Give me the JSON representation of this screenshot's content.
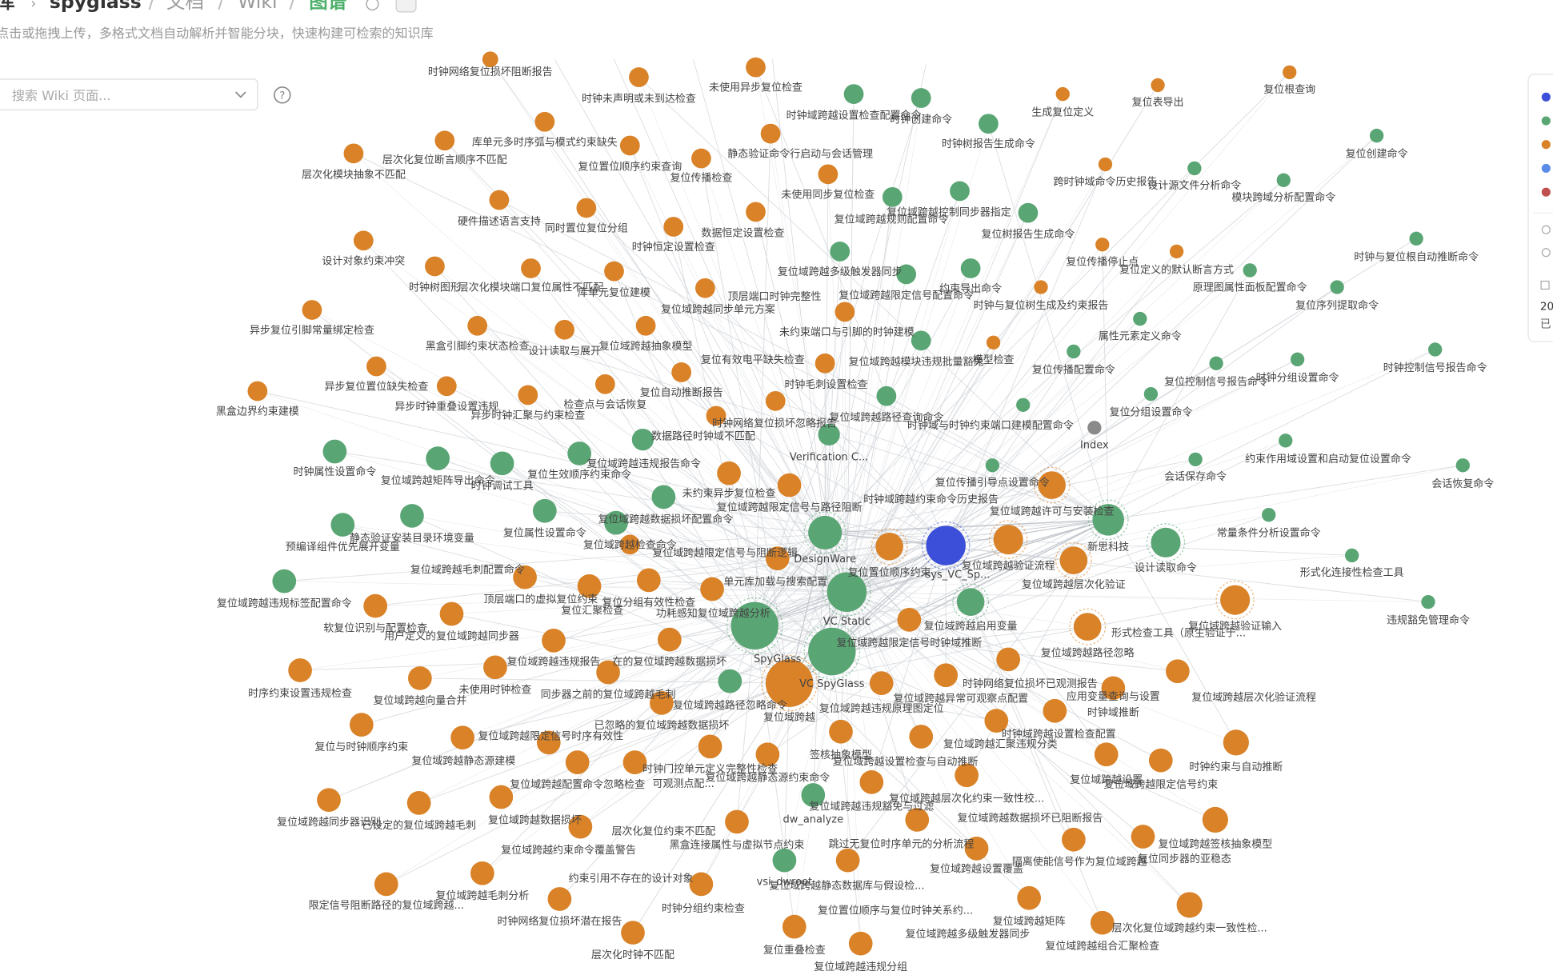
{
  "header": {
    "breadcrumb": [
      "库",
      "spyglass",
      "文档",
      "Wiki",
      "图谱"
    ],
    "subtitle": "点击或拖拽上传，多格式文档自动解析并智能分块，快速构建可检索的知识库"
  },
  "search": {
    "placeholder": "搜索 Wiki 页面..."
  },
  "side_panel": {
    "legend_colors": [
      "#3b4fd8",
      "#5aa574",
      "#d98228",
      "#5b8de8",
      "#c0504d"
    ],
    "count": "20",
    "text": "已"
  },
  "graph": {
    "nodes": [
      {
        "label": "时钟网络复位损坏阻断报告",
        "color": "#d98228"
      },
      {
        "label": "时钟未声明或未到达检查",
        "color": "#d98228"
      },
      {
        "label": "未使用异步复位检查",
        "color": "#d98228"
      },
      {
        "label": "时钟域跨越设置检查配置命令",
        "color": "#5aa574"
      },
      {
        "label": "时钟创建命令",
        "color": "#5aa574"
      },
      {
        "label": "生成复位定义",
        "color": "#d98228"
      },
      {
        "label": "复位表导出",
        "color": "#d98228"
      },
      {
        "label": "复位根查询",
        "color": "#d98228"
      },
      {
        "label": "时钟树报告生成命令",
        "color": "#5aa574"
      },
      {
        "label": "复位创建命令",
        "color": "#5aa574"
      },
      {
        "label": "库单元多时序弧与模式约束缺失",
        "color": "#d98228"
      },
      {
        "label": "静态验证命令行启动与会话管理",
        "color": "#d98228"
      },
      {
        "label": "复位置位顺序约束查询",
        "color": "#d98228"
      },
      {
        "label": "复位传播检查",
        "color": "#d98228"
      },
      {
        "label": "层次化复位断言顺序不匹配",
        "color": "#d98228"
      },
      {
        "label": "层次化模块抽象不匹配",
        "color": "#d98228"
      },
      {
        "label": "跨时钟域命令历史报告",
        "color": "#d98228"
      },
      {
        "label": "设计源文件分析命令",
        "color": "#5aa574"
      },
      {
        "label": "模块跨域分析配置命令",
        "color": "#5aa574"
      },
      {
        "label": "未使用同步复位检查",
        "color": "#5aa574"
      },
      {
        "label": "复位域跨越控制同步器指定",
        "color": "#5aa574"
      },
      {
        "label": "复位域跨越规则配置命令",
        "color": "#d98228"
      },
      {
        "label": "硬件描述语言支持",
        "color": "#d98228"
      },
      {
        "label": "同时置位复位分组",
        "color": "#d98228"
      },
      {
        "label": "数据恒定设置检查",
        "color": "#d98228"
      },
      {
        "label": "时钟恒定设置检查",
        "color": "#d98228"
      },
      {
        "label": "复位树报告生成命令",
        "color": "#5aa574"
      },
      {
        "label": "设计对象约束冲突",
        "color": "#d98228"
      },
      {
        "label": "复位域跨越多级触发器同步",
        "color": "#5aa574"
      },
      {
        "label": "复位传播停止点",
        "color": "#d98228"
      },
      {
        "label": "复位定义的默认断言方式",
        "color": "#d98228"
      },
      {
        "label": "时钟与复位根自动推断命令",
        "color": "#5aa574"
      },
      {
        "label": "时钟树图形",
        "color": "#d98228"
      },
      {
        "label": "层次化模块端口复位属性不匹配",
        "color": "#d98228"
      },
      {
        "label": "库单元复位建模",
        "color": "#d98228"
      },
      {
        "label": "约束导出命令",
        "color": "#5aa574"
      },
      {
        "label": "原理图属性面板配置命令",
        "color": "#5aa574"
      },
      {
        "label": "顶层端口时钟完整性",
        "color": "#d98228"
      },
      {
        "label": "复位域跨越限定信号配置命令",
        "color": "#5aa574"
      },
      {
        "label": "时钟与复位树生成及约束报告",
        "color": "#d98228"
      },
      {
        "label": "复位序列提取命令",
        "color": "#5aa574"
      },
      {
        "label": "异步复位引脚常量绑定检查",
        "color": "#d98228"
      },
      {
        "label": "复位域跨越同步单元方案",
        "color": "#d98228"
      },
      {
        "label": "黑盒引脚约束状态检查",
        "color": "#d98228"
      },
      {
        "label": "设计读取与展开",
        "color": "#d98228"
      },
      {
        "label": "复位域跨越抽象模型",
        "color": "#d98228"
      },
      {
        "label": "未约束端口与引脚的时钟建模",
        "color": "#5aa574"
      },
      {
        "label": "属性元素定义命令",
        "color": "#5aa574"
      },
      {
        "label": "模型检查",
        "color": "#d98228"
      },
      {
        "label": "复位有效电平缺失检查",
        "color": "#d98228"
      },
      {
        "label": "复位域跨越模块违规批量豁免",
        "color": "#d98228"
      },
      {
        "label": "复位传播配置命令",
        "color": "#5aa574"
      },
      {
        "label": "复位控制信号报告命令",
        "color": "#5aa574"
      },
      {
        "label": "时钟分组设置命令",
        "color": "#5aa574"
      },
      {
        "label": "时钟控制信号报告命令",
        "color": "#5aa574"
      },
      {
        "label": "异步复位置位缺失检查",
        "color": "#d98228"
      },
      {
        "label": "复位自动推断报告",
        "color": "#d98228"
      },
      {
        "label": "时钟毛刺设置检查",
        "color": "#d98228"
      },
      {
        "label": "黑盒边界约束建模",
        "color": "#d98228"
      },
      {
        "label": "异步时钟重叠设置违规",
        "color": "#d98228"
      },
      {
        "label": "检查点与会话恢复",
        "color": "#d98228"
      },
      {
        "label": "异步时钟汇聚与约束检查",
        "color": "#d98228"
      },
      {
        "label": "复位分组设置命令",
        "color": "#5aa574"
      },
      {
        "label": "时钟网络复位损坏忽略报告",
        "color": "#d98228"
      },
      {
        "label": "复位域跨越路径查询命令",
        "color": "#5aa574"
      },
      {
        "label": "时钟域与时钟约束端口建模配置命令",
        "color": "#5aa574"
      },
      {
        "label": "数据路径时钟域不匹配",
        "color": "#5aa574"
      },
      {
        "label": "Verification C...",
        "color": "#5aa574"
      },
      {
        "label": "Index",
        "color": "#8a8a8a"
      },
      {
        "label": "约束作用域设置和启动复位设置命令",
        "color": "#5aa574"
      },
      {
        "label": "会话保存命令",
        "color": "#5aa574"
      },
      {
        "label": "会话恢复命令",
        "color": "#5aa574"
      },
      {
        "label": "时钟属性设置命令",
        "color": "#5aa574"
      },
      {
        "label": "复位域跨越矩阵导出命令",
        "color": "#5aa574"
      },
      {
        "label": "时钟调试工具",
        "color": "#5aa574"
      },
      {
        "label": "复位生效顺序约束命令",
        "color": "#5aa574"
      },
      {
        "label": "复位域跨越违规报告命令",
        "color": "#d98228"
      },
      {
        "label": "未约束异步复位检查",
        "color": "#d98228"
      },
      {
        "label": "复位传播引导点设置命令",
        "color": "#d98228"
      },
      {
        "label": "时钟域跨越约束命令历史报告",
        "color": "#5aa574"
      },
      {
        "label": "复位域跨越限定信号与路径阻断",
        "color": "#5aa574"
      },
      {
        "label": "复位域跨越数据损坏配置命令",
        "color": "#5aa574"
      },
      {
        "label": "预编译组件优先展开变量",
        "color": "#5aa574"
      },
      {
        "label": "静态验证安装目录环境变量",
        "color": "#5aa574"
      },
      {
        "label": "复位属性设置命令",
        "color": "#5aa574"
      },
      {
        "label": "复位域跨越检查命令",
        "color": "#d98228"
      },
      {
        "label": "DesignWare",
        "color": "#5aa574"
      },
      {
        "label": "复位域跨越许可与安装检查",
        "color": "#5aa574"
      },
      {
        "label": "新思科技",
        "color": "#5aa574"
      },
      {
        "label": "设计读取命令",
        "color": "#5aa574"
      },
      {
        "label": "常量条件分析设置命令",
        "color": "#5aa574"
      },
      {
        "label": "形式化连接性检查工具",
        "color": "#5aa574"
      },
      {
        "label": "复位域跨越限定信号与阻断逻辑",
        "color": "#d98228"
      },
      {
        "label": "sys_VC_Sp...",
        "color": "#3b4fd8"
      },
      {
        "label": "复位域跨越验证流程",
        "color": "#d98228"
      },
      {
        "label": "复位置位顺序约束",
        "color": "#d98228"
      },
      {
        "label": "复位域跨越毛刺配置命令",
        "color": "#d98228"
      },
      {
        "label": "单元库加载与搜索配置",
        "color": "#d98228"
      },
      {
        "label": "复位域跨越层次化验证",
        "color": "#d98228"
      },
      {
        "label": "复位域跨越违规标签配置命令",
        "color": "#5aa574"
      },
      {
        "label": "顶层端口的虚拟复位约束",
        "color": "#d98228"
      },
      {
        "label": "复位分组有效性检查",
        "color": "#d98228"
      },
      {
        "label": "复位汇聚检查",
        "color": "#d98228"
      },
      {
        "label": "VC Static",
        "color": "#5aa574"
      },
      {
        "label": "复位域跨越验证输入",
        "color": "#d98228"
      },
      {
        "label": "违规豁免管理命令",
        "color": "#5aa574"
      },
      {
        "label": "软复位识别与配置检查",
        "color": "#d98228"
      },
      {
        "label": "功耗感知复位域跨越分析",
        "color": "#d98228"
      },
      {
        "label": "SpyGlass",
        "color": "#5aa574"
      },
      {
        "label": "复位域跨越启用变量",
        "color": "#5aa574"
      },
      {
        "label": "形式检查工具（原生验证于...",
        "color": "#d98228"
      },
      {
        "label": "用户定义的复位域跨越同步器",
        "color": "#d98228"
      },
      {
        "label": "复位域跨越限定信号时钟域推断",
        "color": "#d98228"
      },
      {
        "label": "VC SpyGlass",
        "color": "#5aa574"
      },
      {
        "label": "复位域跨越路径忽略",
        "color": "#d98228"
      },
      {
        "label": "复位域跨越违规报告",
        "color": "#d98228"
      },
      {
        "label": "在的复位域跨越数据损坏",
        "color": "#d98228"
      },
      {
        "label": "时序约束设置违规检查",
        "color": "#d98228"
      },
      {
        "label": "复位域跨越向量合并",
        "color": "#d98228"
      },
      {
        "label": "未使用时钟检查",
        "color": "#d98228"
      },
      {
        "label": "同步器之前的复位域跨越毛刺",
        "color": "#d98228"
      },
      {
        "label": "时钟网络复位损坏已观测报告",
        "color": "#d98228"
      },
      {
        "label": "应用变量查询与设置",
        "color": "#d98228"
      },
      {
        "label": "复位域跨越层次化验证流程",
        "color": "#d98228"
      },
      {
        "label": "复位域跨越",
        "color": "#d98228"
      },
      {
        "label": "复位域跨越违规原理图定位",
        "color": "#d98228"
      },
      {
        "label": "复位域跨越异常可观察点配置",
        "color": "#d98228"
      },
      {
        "label": "时钟域推断",
        "color": "#d98228"
      },
      {
        "label": "复位域跨越路径忽略命令",
        "color": "#5aa574"
      },
      {
        "label": "复位与时钟顺序约束",
        "color": "#d98228"
      },
      {
        "label": "已忽略的复位域跨越数据损坏",
        "color": "#d98228"
      },
      {
        "label": "复位域跨越限定信号时序有效性",
        "color": "#d98228"
      },
      {
        "label": "时钟域跨越设置检查配置",
        "color": "#d98228"
      },
      {
        "label": "复位域跨越汇聚违规分类",
        "color": "#d98228"
      },
      {
        "label": "时钟约束与自动推断",
        "color": "#d98228"
      },
      {
        "label": "复位域跨越静态源建模",
        "color": "#d98228"
      },
      {
        "label": "签核抽象模型",
        "color": "#d98228"
      },
      {
        "label": "复位域跨越设置检查与自动推断",
        "color": "#d98228"
      },
      {
        "label": "时钟门控单元定义完整性检查",
        "color": "#d98228"
      },
      {
        "label": "复位域跨越配置命令忽略检查",
        "color": "#d98228"
      },
      {
        "label": "可观测点配...",
        "color": "#d98228"
      },
      {
        "label": "复位域跨越静态源约束命令",
        "color": "#d98228"
      },
      {
        "label": "复位域跨越设置",
        "color": "#d98228"
      },
      {
        "label": "复位域跨越限定信号约束",
        "color": "#d98228"
      },
      {
        "label": "复位域跨越同步器识别",
        "color": "#d98228"
      },
      {
        "label": "已设定的复位域跨越毛刺",
        "color": "#d98228"
      },
      {
        "label": "复位域跨越数据损坏",
        "color": "#d98228"
      },
      {
        "label": "dw_analyze",
        "color": "#5aa574"
      },
      {
        "label": "复位域跨越层次化约束一致性校...",
        "color": "#d98228"
      },
      {
        "label": "复位域跨越违规豁免与过滤",
        "color": "#d98228"
      },
      {
        "label": "复位域跨越数据损坏已阻断报告",
        "color": "#d98228"
      },
      {
        "label": "层次化复位约束不匹配",
        "color": "#d98228"
      },
      {
        "label": "复位域跨越签核抽象模型",
        "color": "#d98228"
      },
      {
        "label": "复位域跨越约束命令覆盖警告",
        "color": "#d98228"
      },
      {
        "label": "黑盒连接属性与虚拟节点约束",
        "color": "#d98228"
      },
      {
        "label": "跳过无复位时序单元的分析流程",
        "color": "#d98228"
      },
      {
        "label": "隔离使能信号作为复位域跨越",
        "color": "#d98228"
      },
      {
        "label": "复位同步器的亚稳态",
        "color": "#d98228"
      },
      {
        "label": "复位域跨越设置覆盖",
        "color": "#d98228"
      },
      {
        "label": "约束引用不存在的设计对象",
        "color": "#d98228"
      },
      {
        "label": "vsi_dwroot",
        "color": "#5aa574"
      },
      {
        "label": "复位域跨越毛刺分析",
        "color": "#d98228"
      },
      {
        "label": "限定信号阻断路径的复位域跨越...",
        "color": "#d98228"
      },
      {
        "label": "复位域跨越静态数据库与假设检...",
        "color": "#d98228"
      },
      {
        "label": "时钟网络复位损坏潜在报告",
        "color": "#d98228"
      },
      {
        "label": "时钟分组约束检查",
        "color": "#d98228"
      },
      {
        "label": "复位置位顺序与复位时钟关系约...",
        "color": "#d98228"
      },
      {
        "label": "复位域跨越矩阵",
        "color": "#d98228"
      },
      {
        "label": "层次化复位域跨越约束一致性检...",
        "color": "#d98228"
      },
      {
        "label": "复位域跨越多级触发器同步",
        "color": "#d98228"
      },
      {
        "label": "复位域跨越组合汇聚检查",
        "color": "#d98228"
      },
      {
        "label": "层次化时钟不匹配",
        "color": "#d98228"
      },
      {
        "label": "复位重叠检查",
        "color": "#d98228"
      },
      {
        "label": "复位域跨越违规分组",
        "color": "#d98228"
      }
    ]
  }
}
